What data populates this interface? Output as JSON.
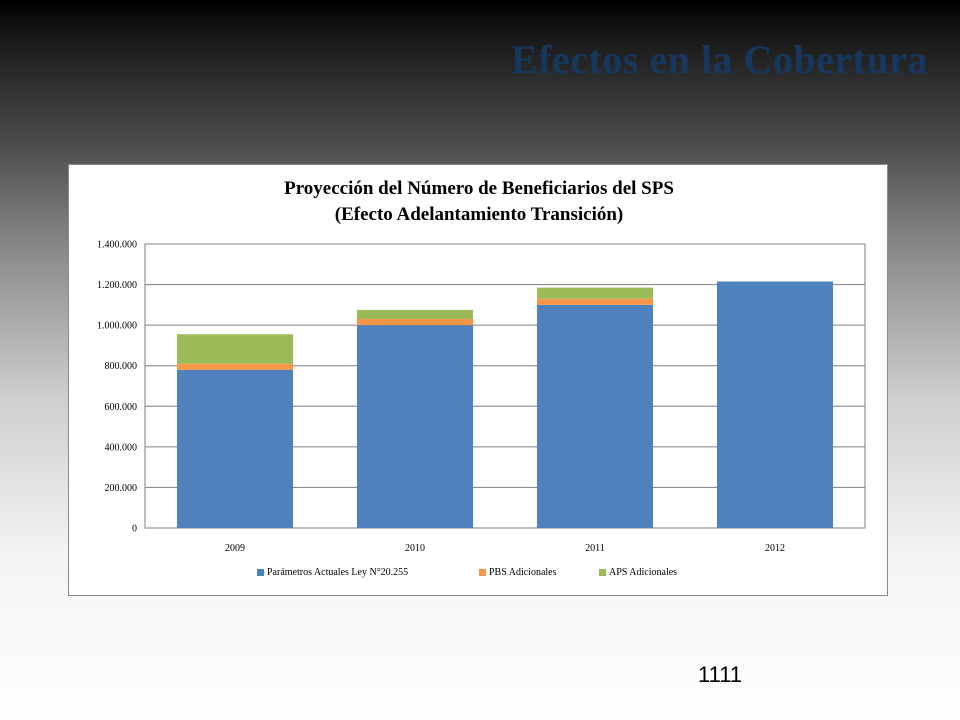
{
  "slide": {
    "title": "Efectos en la Cobertura",
    "page_number": "1111"
  },
  "colors": {
    "title": "#17375e",
    "series": [
      "#4f81bd",
      "#f79646",
      "#9bbb59"
    ]
  },
  "chart_data": {
    "type": "bar",
    "stacked": true,
    "title_line1": "Proyección del Número de Beneficiarios del SPS",
    "title_line2": "(Efecto Adelantamiento Transición)",
    "categories": [
      "2009",
      "2010",
      "2011",
      "2012"
    ],
    "series": [
      {
        "name": "Parámetros Actuales Ley N°20.255",
        "values": [
          780000,
          1000000,
          1100000,
          1215000
        ]
      },
      {
        "name": "PBS Adicionales",
        "values": [
          30000,
          30000,
          30000,
          0
        ]
      },
      {
        "name": "APS Adicionales",
        "values": [
          145000,
          45000,
          55000,
          0
        ]
      }
    ],
    "ylim": [
      0,
      1400000
    ],
    "yticks": [
      0,
      200000,
      400000,
      600000,
      800000,
      1000000,
      1200000,
      1400000
    ],
    "ytick_labels": [
      "0",
      "200.000",
      "400.000",
      "600.000",
      "800.000",
      "1.000.000",
      "1.200.000",
      "1.400.000"
    ],
    "grid": true,
    "legend_position": "bottom"
  }
}
